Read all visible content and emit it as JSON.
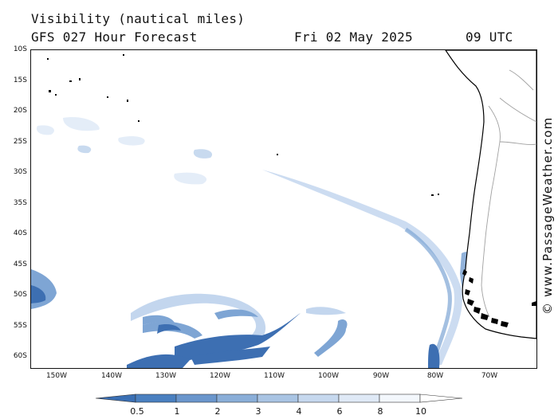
{
  "header": {
    "title_line1": "Visibility (nautical miles)",
    "title_line2": "GFS 027 Hour Forecast",
    "date": "Fri 02 May 2025",
    "time": "09 UTC"
  },
  "map": {
    "latitude_labels": [
      "10S",
      "15S",
      "20S",
      "25S",
      "30S",
      "35S",
      "40S",
      "45S",
      "50S",
      "55S",
      "60S"
    ],
    "longitude_labels": [
      "150W",
      "140W",
      "130W",
      "120W",
      "110W",
      "100W",
      "90W",
      "80W",
      "70W"
    ]
  },
  "copyright": "© www.PassageWeather.com",
  "legend": {
    "labels": [
      "0.5",
      "1",
      "2",
      "3",
      "4",
      "6",
      "8",
      "10"
    ],
    "colors": [
      "#3a6fb4",
      "#4a80c0",
      "#6a96cc",
      "#8aaed8",
      "#a9c4e3",
      "#c6d8ee",
      "#dfe9f6",
      "#f3f7fc",
      "#ffffff"
    ]
  },
  "colors": {
    "vis_dense": "#3d6fb2",
    "vis_mid": "#7ea5d4",
    "vis_light": "#c3d6ee",
    "vis_faint": "#e2ecf8",
    "land_outline": "#000000",
    "border": "#a0a0a0"
  }
}
